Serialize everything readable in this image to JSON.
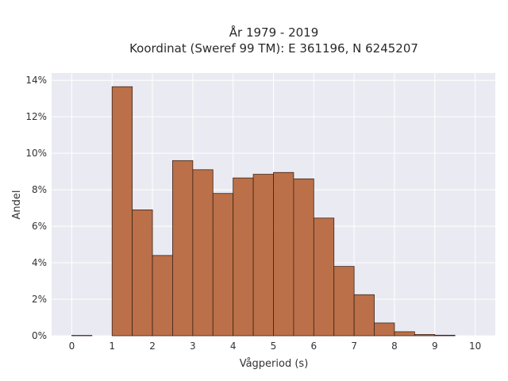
{
  "chart_data": {
    "type": "bar",
    "title_lines": [
      "År 1979 - 2019",
      "Koordinat (Sweref 99 TM): E 361196, N 6245207"
    ],
    "xlabel": "Vågperiod (s)",
    "ylabel": "Andel",
    "xlim": [
      -0.5,
      10.5
    ],
    "ylim": [
      0,
      14.4
    ],
    "x_ticks": [
      0,
      1,
      2,
      3,
      4,
      5,
      6,
      7,
      8,
      9,
      10
    ],
    "x_tick_labels": [
      "0",
      "1",
      "2",
      "3",
      "4",
      "5",
      "6",
      "7",
      "8",
      "9",
      "10"
    ],
    "y_ticks": [
      0,
      2,
      4,
      6,
      8,
      10,
      12,
      14
    ],
    "y_tick_labels": [
      "0%",
      "2%",
      "4%",
      "6%",
      "8%",
      "10%",
      "12%",
      "14%"
    ],
    "bin_width": 0.5,
    "bin_edges_start": [
      0,
      0.5,
      1.0,
      1.5,
      2.0,
      2.5,
      3.0,
      3.5,
      4.0,
      4.5,
      5.0,
      5.5,
      6.0,
      6.5,
      7.0,
      7.5,
      8.0,
      8.5,
      9.0,
      9.5
    ],
    "values": [
      0.02,
      0,
      13.65,
      6.9,
      4.4,
      9.6,
      9.1,
      7.8,
      8.65,
      8.85,
      8.95,
      8.6,
      6.45,
      3.8,
      2.25,
      0.7,
      0.22,
      0.07,
      0.03,
      0
    ],
    "grid": true,
    "colors": {
      "bar_fill": "#b8693f",
      "bar_edge": "#3d2418",
      "plot_bg": "#eaeaf2",
      "grid": "#ffffff"
    }
  }
}
